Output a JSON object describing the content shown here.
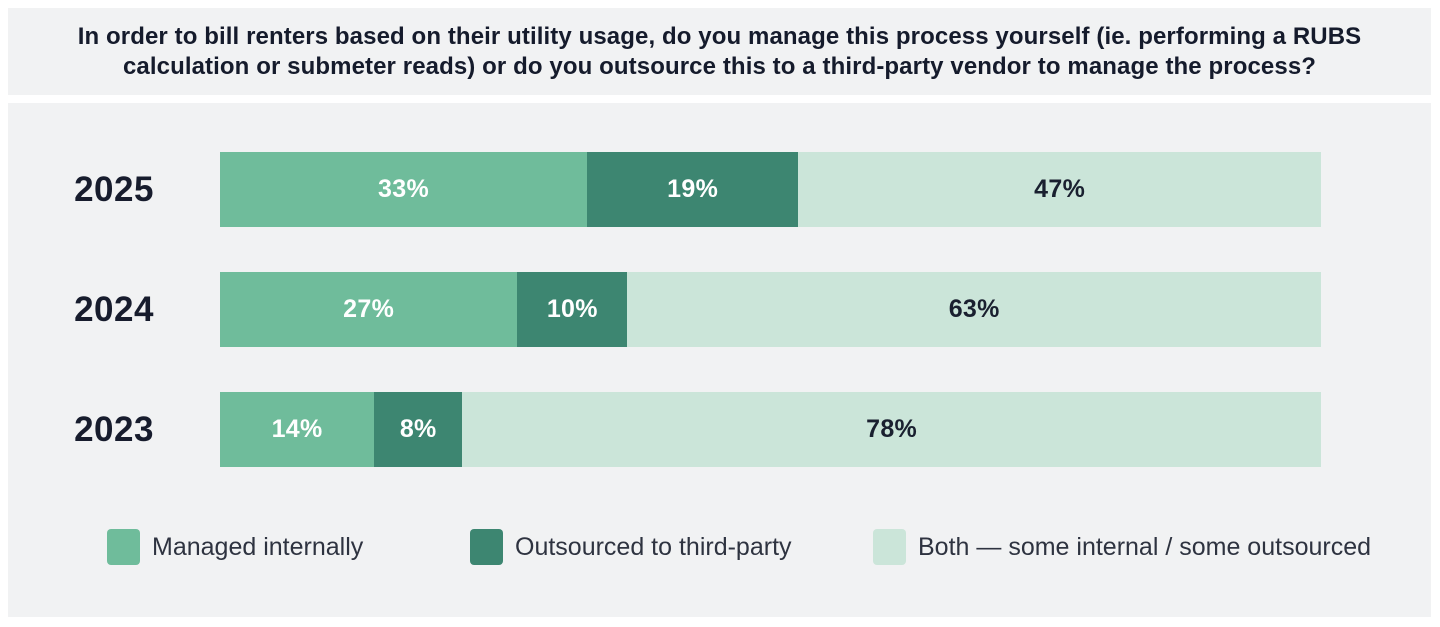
{
  "title": "In order to bill renters based on their utility usage, do you manage this process yourself (ie. performing a RUBS calculation or submeter reads) or do you outsource this to a third-party vendor to manage the process?",
  "colors": {
    "panel_background": "#f1f2f3",
    "page_background": "#ffffff",
    "title_text": "#151b2c",
    "year_label_text": "#171c2d",
    "legend_text": "#2e3340",
    "managed_internally": "#6fbc9b",
    "outsourced_third_party": "#3d8671",
    "both_mixed": "#cbe5d9",
    "label_on_dark": "#ffffff",
    "label_on_light": "#1a2030"
  },
  "chart_data": {
    "type": "bar",
    "subtype": "horizontal-stacked",
    "stacked": true,
    "title": "In order to bill renters based on their utility usage, do you manage this process yourself (ie. performing a RUBS calculation or submeter reads) or do you outsource this to a third-party vendor to manage the process?",
    "categories": [
      "2025",
      "2024",
      "2023"
    ],
    "series": [
      {
        "name": "Managed internally",
        "color": "#6fbc9b",
        "label_color": "#ffffff",
        "values": [
          33,
          27,
          14
        ]
      },
      {
        "name": "Outsourced to third-party",
        "color": "#3d8671",
        "label_color": "#ffffff",
        "values": [
          19,
          10,
          8
        ]
      },
      {
        "name": "Both — some internal / some outsourced",
        "color": "#cbe5d9",
        "label_color": "#1a2030",
        "values": [
          47,
          63,
          78
        ]
      }
    ],
    "value_suffix": "%",
    "xlim": [
      0,
      100
    ],
    "grid": false,
    "legend_position": "bottom",
    "data_labels": "inside-center"
  }
}
